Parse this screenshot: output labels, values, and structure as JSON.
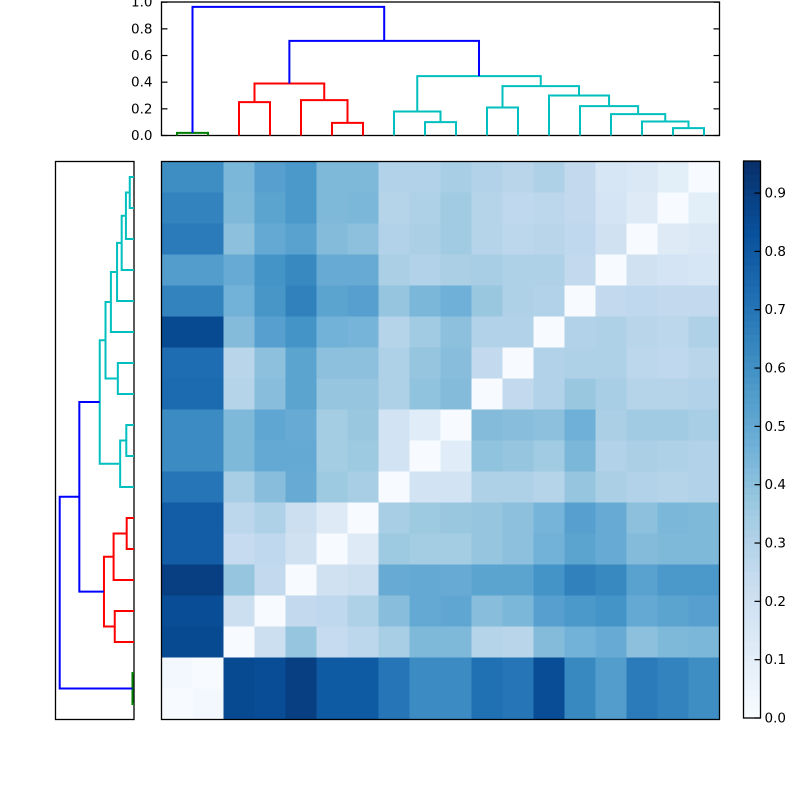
{
  "chart_data": {
    "type": "heatmap",
    "title": "",
    "subtype": "clustered-distance-matrix-with-dendrograms",
    "n_items": 18,
    "vmin": 0.0,
    "vmax": 0.955,
    "colormap": "Blues",
    "colormap_stops": [
      "#f7fbff",
      "#deebf7",
      "#c6dbef",
      "#9ecae1",
      "#6baed6",
      "#4292c6",
      "#2171b5",
      "#08519c",
      "#08306b"
    ],
    "matrix": [
      [
        0.61,
        0.61,
        0.44,
        0.54,
        0.57,
        0.43,
        0.43,
        0.3,
        0.3,
        0.33,
        0.3,
        0.28,
        0.31,
        0.25,
        0.16,
        0.14,
        0.1,
        0.0
      ],
      [
        0.65,
        0.65,
        0.43,
        0.52,
        0.57,
        0.43,
        0.44,
        0.29,
        0.31,
        0.35,
        0.29,
        0.26,
        0.27,
        0.25,
        0.17,
        0.12,
        0.0,
        0.1
      ],
      [
        0.68,
        0.68,
        0.4,
        0.5,
        0.53,
        0.42,
        0.4,
        0.3,
        0.32,
        0.35,
        0.29,
        0.27,
        0.28,
        0.26,
        0.19,
        0.0,
        0.12,
        0.14
      ],
      [
        0.55,
        0.55,
        0.49,
        0.59,
        0.63,
        0.49,
        0.49,
        0.32,
        0.3,
        0.32,
        0.33,
        0.31,
        0.31,
        0.25,
        0.0,
        0.19,
        0.17,
        0.16
      ],
      [
        0.65,
        0.65,
        0.46,
        0.58,
        0.66,
        0.52,
        0.54,
        0.38,
        0.44,
        0.47,
        0.37,
        0.31,
        0.3,
        0.0,
        0.25,
        0.26,
        0.25,
        0.25
      ],
      [
        0.86,
        0.86,
        0.42,
        0.54,
        0.59,
        0.46,
        0.45,
        0.29,
        0.35,
        0.4,
        0.3,
        0.3,
        0.0,
        0.3,
        0.31,
        0.28,
        0.27,
        0.31
      ],
      [
        0.73,
        0.73,
        0.28,
        0.4,
        0.52,
        0.4,
        0.4,
        0.31,
        0.38,
        0.41,
        0.25,
        0.0,
        0.3,
        0.31,
        0.31,
        0.27,
        0.26,
        0.28
      ],
      [
        0.74,
        0.74,
        0.29,
        0.41,
        0.52,
        0.38,
        0.38,
        0.31,
        0.39,
        0.42,
        0.0,
        0.25,
        0.3,
        0.37,
        0.33,
        0.29,
        0.29,
        0.3
      ],
      [
        0.62,
        0.62,
        0.43,
        0.51,
        0.49,
        0.34,
        0.37,
        0.18,
        0.11,
        0.0,
        0.42,
        0.41,
        0.4,
        0.47,
        0.32,
        0.35,
        0.35,
        0.33
      ],
      [
        0.62,
        0.62,
        0.43,
        0.5,
        0.5,
        0.34,
        0.36,
        0.18,
        0.0,
        0.11,
        0.39,
        0.38,
        0.35,
        0.44,
        0.3,
        0.32,
        0.31,
        0.3
      ],
      [
        0.7,
        0.7,
        0.33,
        0.41,
        0.49,
        0.36,
        0.33,
        0.0,
        0.18,
        0.18,
        0.31,
        0.31,
        0.29,
        0.38,
        0.32,
        0.3,
        0.29,
        0.3
      ],
      [
        0.79,
        0.79,
        0.27,
        0.31,
        0.21,
        0.12,
        0.0,
        0.33,
        0.36,
        0.37,
        0.38,
        0.4,
        0.45,
        0.54,
        0.49,
        0.4,
        0.44,
        0.43
      ],
      [
        0.79,
        0.79,
        0.24,
        0.26,
        0.19,
        0.0,
        0.12,
        0.36,
        0.34,
        0.34,
        0.38,
        0.4,
        0.46,
        0.52,
        0.49,
        0.42,
        0.43,
        0.43
      ],
      [
        0.9,
        0.9,
        0.38,
        0.25,
        0.0,
        0.19,
        0.21,
        0.49,
        0.5,
        0.49,
        0.52,
        0.52,
        0.59,
        0.66,
        0.63,
        0.53,
        0.57,
        0.57
      ],
      [
        0.85,
        0.85,
        0.21,
        0.0,
        0.25,
        0.26,
        0.31,
        0.41,
        0.5,
        0.51,
        0.41,
        0.44,
        0.54,
        0.57,
        0.59,
        0.5,
        0.52,
        0.54
      ],
      [
        0.86,
        0.86,
        0.0,
        0.21,
        0.38,
        0.24,
        0.27,
        0.33,
        0.43,
        0.43,
        0.29,
        0.28,
        0.42,
        0.46,
        0.49,
        0.4,
        0.43,
        0.44
      ],
      [
        0.02,
        0.0,
        0.86,
        0.85,
        0.9,
        0.8,
        0.8,
        0.7,
        0.62,
        0.62,
        0.72,
        0.7,
        0.85,
        0.63,
        0.55,
        0.68,
        0.65,
        0.61
      ],
      [
        0.0,
        0.02,
        0.86,
        0.85,
        0.9,
        0.8,
        0.8,
        0.7,
        0.62,
        0.62,
        0.72,
        0.7,
        0.85,
        0.63,
        0.55,
        0.68,
        0.65,
        0.61
      ]
    ],
    "dendrogram": {
      "link_colors": {
        "b": "#0000ff",
        "r": "#ff0000",
        "c": "#00bfbf",
        "g": "#008000"
      },
      "links": [
        [
          0.5,
          0,
          1.5,
          0,
          0.02,
          "g"
        ],
        [
          2.5,
          0,
          3.5,
          0,
          0.25,
          "r"
        ],
        [
          5.5,
          0,
          6.5,
          0,
          0.095,
          "r"
        ],
        [
          4.5,
          0,
          6.0,
          0.095,
          0.265,
          "r"
        ],
        [
          3.0,
          0.25,
          5.25,
          0.265,
          0.39,
          "r"
        ],
        [
          8.5,
          0,
          9.5,
          0,
          0.1,
          "c"
        ],
        [
          7.5,
          0,
          9.0,
          0.1,
          0.18,
          "c"
        ],
        [
          16.5,
          0,
          17.5,
          0,
          0.055,
          "c"
        ],
        [
          15.5,
          0,
          17.0,
          0.055,
          0.105,
          "c"
        ],
        [
          14.5,
          0,
          16.25,
          0.105,
          0.16,
          "c"
        ],
        [
          13.5,
          0,
          15.375,
          0.16,
          0.22,
          "c"
        ],
        [
          12.5,
          0,
          14.4375,
          0.22,
          0.3,
          "c"
        ],
        [
          10.5,
          0,
          11.5,
          0,
          0.21,
          "c"
        ],
        [
          11.0,
          0.21,
          13.46875,
          0.3,
          0.37,
          "c"
        ],
        [
          8.25,
          0.18,
          12.234375,
          0.37,
          0.445,
          "c"
        ],
        [
          4.125,
          0.39,
          10.2421875,
          0.445,
          0.71,
          "b"
        ],
        [
          1.0,
          0.02,
          7.18359375,
          0.71,
          0.965,
          "b"
        ]
      ]
    },
    "top_axis": {
      "ticks": [
        [
          "1.0",
          1.0
        ],
        [
          "0.8",
          0.8
        ],
        [
          "0.6",
          0.6
        ],
        [
          "0.4",
          0.4
        ],
        [
          "0.2",
          0.2
        ],
        [
          "0.0",
          0.0
        ]
      ]
    },
    "colorbar": {
      "ticks": [
        [
          "0.9",
          0.9
        ],
        [
          "0.8",
          0.8
        ],
        [
          "0.7",
          0.7
        ],
        [
          "0.6",
          0.6
        ],
        [
          "0.5",
          0.5
        ],
        [
          "0.4",
          0.4
        ],
        [
          "0.3",
          0.3
        ],
        [
          "0.2",
          0.2
        ],
        [
          "0.1",
          0.1
        ],
        [
          "0.0",
          0.0
        ]
      ]
    }
  }
}
